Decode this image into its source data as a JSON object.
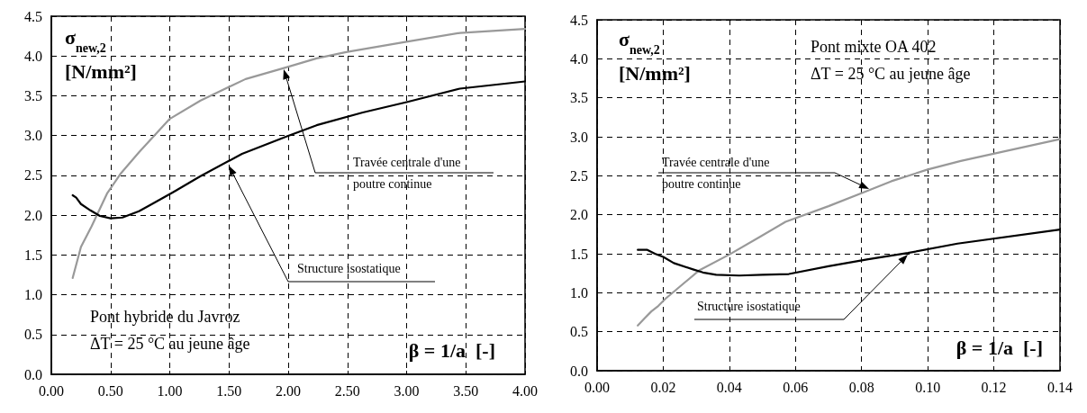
{
  "chart_data": [
    {
      "type": "line",
      "ylabel": "σ$_{new,2}$ [N/mm²]",
      "xlabel": "β = 1/a  [-]",
      "grid": true,
      "marker": "none",
      "xlim": [
        0,
        4
      ],
      "xticks": [
        {
          "value": 0,
          "label": "0.00"
        },
        {
          "value": 0.5,
          "label": "0.50"
        },
        {
          "value": 1,
          "label": "1.00"
        },
        {
          "value": 1.5,
          "label": "1.50"
        },
        {
          "value": 2,
          "label": "2.00"
        },
        {
          "value": 2.5,
          "label": "2.50"
        },
        {
          "value": 3,
          "label": "3.00"
        },
        {
          "value": 3.5,
          "label": "3.50"
        },
        {
          "value": 4,
          "label": "4.00"
        }
      ],
      "ylim": [
        0,
        4.5
      ],
      "yticks": [
        {
          "value": 0,
          "label": "0.0"
        },
        {
          "value": 0.5,
          "label": "0.5"
        },
        {
          "value": 1,
          "label": "1.0"
        },
        {
          "value": 1.5,
          "label": "1.5"
        },
        {
          "value": 2,
          "label": "2.0"
        },
        {
          "value": 2.5,
          "label": "2.5"
        },
        {
          "value": 3,
          "label": "3.0"
        },
        {
          "value": 3.5,
          "label": "3.5"
        },
        {
          "value": 4,
          "label": "4.0"
        },
        {
          "value": 4.5,
          "label": "4.5"
        }
      ],
      "series": [
        {
          "color": "#999999",
          "x": [
            0.18,
            0.25,
            0.34,
            0.47,
            0.59,
            0.74,
            1.0,
            1.26,
            1.64,
            1.99,
            2.24,
            2.49,
            3.0,
            3.45,
            4.0
          ],
          "values": [
            1.21,
            1.6,
            1.86,
            2.27,
            2.53,
            2.79,
            3.21,
            3.44,
            3.71,
            3.86,
            3.97,
            4.05,
            4.18,
            4.29,
            4.34
          ]
        },
        {
          "color": "#000000",
          "x": [
            0.18,
            0.21,
            0.25,
            0.33,
            0.41,
            0.5,
            0.6,
            0.74,
            0.85,
            1.03,
            1.26,
            1.61,
            1.99,
            2.24,
            2.63,
            3.0,
            3.45,
            4.0
          ],
          "values": [
            2.25,
            2.22,
            2.14,
            2.06,
            1.99,
            1.96,
            1.97,
            2.05,
            2.14,
            2.29,
            2.49,
            2.77,
            2.99,
            3.13,
            3.29,
            3.42,
            3.59,
            3.68
          ]
        }
      ],
      "annotations": [
        "Pont hybride du Javroz",
        "ΔT = 25 °C au jeune âge",
        "Travée centrale d'une poutre continue",
        "Structure isostatique"
      ]
    },
    {
      "type": "line",
      "ylabel": "σ$_{new,2}$ [N/mm²]",
      "xlabel": "β = 1/a  [-]",
      "grid": true,
      "marker": "none",
      "xlim": [
        0,
        0.14
      ],
      "xticks": [
        {
          "value": 0,
          "label": "0.00"
        },
        {
          "value": 0.02,
          "label": "0.02"
        },
        {
          "value": 0.04,
          "label": "0.04"
        },
        {
          "value": 0.06,
          "label": "0.06"
        },
        {
          "value": 0.08,
          "label": "0.08"
        },
        {
          "value": 0.1,
          "label": "0.10"
        },
        {
          "value": 0.12,
          "label": "0.12"
        },
        {
          "value": 0.14,
          "label": "0.14"
        }
      ],
      "ylim": [
        0,
        4.5
      ],
      "yticks": [
        {
          "value": 0,
          "label": "0.0"
        },
        {
          "value": 0.5,
          "label": "0.5"
        },
        {
          "value": 1,
          "label": "1.0"
        },
        {
          "value": 1.5,
          "label": "1.5"
        },
        {
          "value": 2,
          "label": "2.0"
        },
        {
          "value": 2.5,
          "label": "2.5"
        },
        {
          "value": 3,
          "label": "3.0"
        },
        {
          "value": 3.5,
          "label": "3.5"
        },
        {
          "value": 4,
          "label": "4.0"
        },
        {
          "value": 4.5,
          "label": "4.5"
        }
      ],
      "series": [
        {
          "color": "#999999",
          "x": [
            0.0123,
            0.0143,
            0.0164,
            0.0185,
            0.0206,
            0.0248,
            0.031,
            0.04,
            0.049,
            0.057,
            0.07,
            0.082,
            0.089,
            0.1,
            0.11,
            0.14
          ],
          "values": [
            0.58,
            0.67,
            0.76,
            0.83,
            0.92,
            1.07,
            1.29,
            1.49,
            1.71,
            1.91,
            2.11,
            2.31,
            2.43,
            2.58,
            2.69,
            2.97
          ]
        },
        {
          "color": "#000000",
          "x": [
            0.0123,
            0.0152,
            0.0175,
            0.02,
            0.0232,
            0.029,
            0.032,
            0.036,
            0.043,
            0.05,
            0.058,
            0.07,
            0.082,
            0.094,
            0.109,
            0.14
          ],
          "values": [
            1.55,
            1.55,
            1.5,
            1.46,
            1.38,
            1.3,
            1.26,
            1.23,
            1.22,
            1.23,
            1.24,
            1.34,
            1.43,
            1.51,
            1.63,
            1.81
          ]
        }
      ],
      "annotations": [
        "Pont mixte OA 402",
        "ΔT = 25 °C au jeune âge",
        "Travée centrale d'une poutre continue",
        "Structure isostatique"
      ]
    }
  ]
}
